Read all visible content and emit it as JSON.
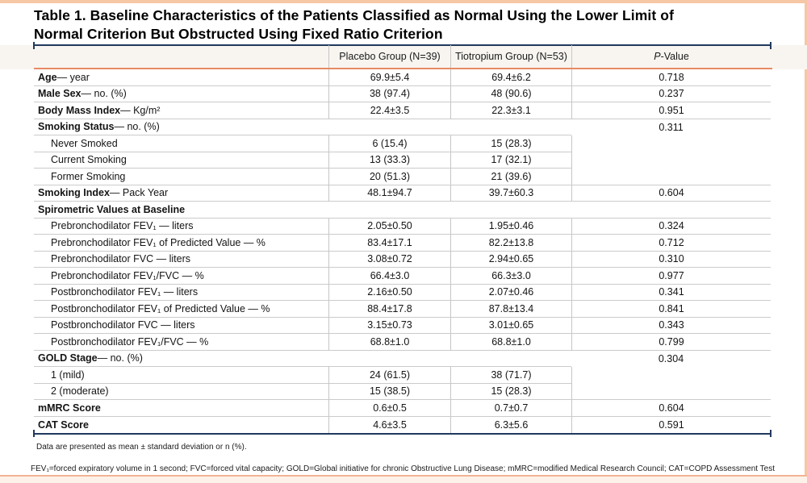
{
  "title": {
    "line1": "Table 1. Baseline Characteristics of the Patients Classified as Normal Using the Lower Limit of",
    "line2": "Normal Criterion But Obstructed Using Fixed Ratio Criterion"
  },
  "table": {
    "columns": {
      "placebo": "Placebo Group (N=39)",
      "tiotropium": "Tiotropium Group (N=53)",
      "p_italic": "P",
      "p_rest": "-Value"
    },
    "rows": [
      {
        "b": "Age",
        "r": " — year",
        "v1": "69.9±5.4",
        "v2": "69.4±6.2",
        "p": "0.718"
      },
      {
        "b": "Male Sex",
        "r": " — no. (%)",
        "v1": "38 (97.4)",
        "v2": "48 (90.6)",
        "p": "0.237"
      },
      {
        "b": "Body Mass Index",
        "r": " — Kg/m²",
        "v1": "22.4±3.5",
        "v2": "22.3±3.1",
        "p": "0.951"
      },
      {
        "b": "Smoking Status",
        "r": " — no. (%)",
        "v1": "",
        "v2": "",
        "p": "0.311"
      },
      {
        "b": "",
        "r": "Never Smoked",
        "v1": "6 (15.4)",
        "v2": "15 (28.3)",
        "p": ""
      },
      {
        "b": "",
        "r": "Current Smoking",
        "v1": "13 (33.3)",
        "v2": "17 (32.1)",
        "p": ""
      },
      {
        "b": "",
        "r": "Former Smoking",
        "v1": "20 (51.3)",
        "v2": "21 (39.6)",
        "p": ""
      },
      {
        "b": "Smoking Index",
        "r": " — Pack Year",
        "v1": "48.1±94.7",
        "v2": "39.7±60.3",
        "p": "0.604"
      },
      {
        "b": "Spirometric Values at Baseline",
        "r": "",
        "v1": "",
        "v2": "",
        "p": ""
      },
      {
        "b": "",
        "r": "Prebronchodilator FEV₁ — liters",
        "v1": "2.05±0.50",
        "v2": "1.95±0.46",
        "p": "0.324"
      },
      {
        "b": "",
        "r": "Prebronchodilator FEV₁ of Predicted Value — %",
        "v1": "83.4±17.1",
        "v2": "82.2±13.8",
        "p": "0.712"
      },
      {
        "b": "",
        "r": "Prebronchodilator FVC — liters",
        "v1": "3.08±0.72",
        "v2": "2.94±0.65",
        "p": "0.310"
      },
      {
        "b": "",
        "r": "Prebronchodilator FEV₁/FVC — %",
        "v1": "66.4±3.0",
        "v2": "66.3±3.0",
        "p": "0.977"
      },
      {
        "b": "",
        "r": "Postbronchodilator FEV₁ — liters",
        "v1": "2.16±0.50",
        "v2": "2.07±0.46",
        "p": "0.341"
      },
      {
        "b": "",
        "r": "Postbronchodilator FEV₁ of Predicted Value — %",
        "v1": "88.4±17.8",
        "v2": "87.8±13.4",
        "p": "0.841"
      },
      {
        "b": "",
        "r": "Postbronchodilator FVC — liters",
        "v1": "3.15±0.73",
        "v2": "3.01±0.65",
        "p": "0.343"
      },
      {
        "b": "",
        "r": "Postbronchodilator FEV₁/FVC — %",
        "v1": "68.8±1.0",
        "v2": "68.8±1.0",
        "p": "0.799"
      },
      {
        "b": "GOLD Stage",
        "r": " — no. (%)",
        "v1": "",
        "v2": "",
        "p": "0.304"
      },
      {
        "b": "",
        "r": "1 (mild)",
        "v1": "24 (61.5)",
        "v2": "38 (71.7)",
        "p": ""
      },
      {
        "b": "",
        "r": "2 (moderate)",
        "v1": "15 (38.5)",
        "v2": "15 (28.3)",
        "p": ""
      },
      {
        "b": "mMRC Score",
        "r": "",
        "v1": "0.6±0.5",
        "v2": "0.7±0.7",
        "p": "0.604"
      },
      {
        "b": "CAT Score",
        "r": "",
        "v1": "4.6±3.5",
        "v2": "6.3±5.6",
        "p": "0.591"
      }
    ]
  },
  "footnotes": {
    "line1": "Data are presented as mean ± standard deviation or n (%).",
    "line2": "FEV₁=forced expiratory volume in 1 second; FVC=forced vital capacity; GOLD=Global initiative for chronic Obstructive Lung Disease; mMRC=modified Medical Research Council; CAT=COPD Assessment Test"
  },
  "colors": {
    "accent_navy": "#21395e",
    "accent_orange": "#e88a64",
    "frame_peach": "#f6c7a4",
    "header_bg": "#f8f5f0",
    "grid_gray": "#c9c9c9"
  }
}
